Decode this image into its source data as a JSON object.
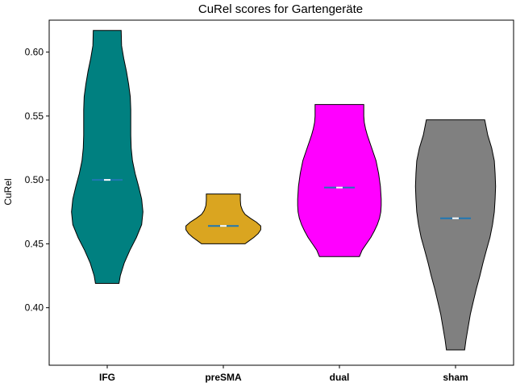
{
  "chart_data": {
    "type": "violin",
    "title": "CuRel scores for Gartengeräte",
    "xlabel": "",
    "ylabel": "CuRel",
    "ylim": [
      0.355,
      0.625
    ],
    "yticks": [
      0.4,
      0.45,
      0.5,
      0.55,
      0.6
    ],
    "ytick_labels": [
      "0.40",
      "0.45",
      "0.50",
      "0.55",
      "0.60"
    ],
    "categories": [
      "IFG",
      "preSMA",
      "dual",
      "sham"
    ],
    "grid": false,
    "violins": [
      {
        "category": "IFG",
        "color": "#008080",
        "min": 0.419,
        "max": 0.617,
        "mean": 0.5,
        "median": 0.5,
        "profile": [
          [
            0.419,
            0.27
          ],
          [
            0.425,
            0.3
          ],
          [
            0.435,
            0.39
          ],
          [
            0.445,
            0.52
          ],
          [
            0.455,
            0.67
          ],
          [
            0.465,
            0.79
          ],
          [
            0.475,
            0.82
          ],
          [
            0.485,
            0.79
          ],
          [
            0.495,
            0.72
          ],
          [
            0.505,
            0.64
          ],
          [
            0.515,
            0.58
          ],
          [
            0.525,
            0.55
          ],
          [
            0.535,
            0.54
          ],
          [
            0.545,
            0.54
          ],
          [
            0.555,
            0.54
          ],
          [
            0.565,
            0.53
          ],
          [
            0.575,
            0.49
          ],
          [
            0.585,
            0.44
          ],
          [
            0.595,
            0.38
          ],
          [
            0.605,
            0.33
          ],
          [
            0.617,
            0.32
          ]
        ]
      },
      {
        "category": "preSMA",
        "color": "#DAA520",
        "min": 0.45,
        "max": 0.489,
        "mean": 0.464,
        "median": 0.464,
        "profile": [
          [
            0.45,
            0.5
          ],
          [
            0.452,
            0.58
          ],
          [
            0.455,
            0.7
          ],
          [
            0.458,
            0.8
          ],
          [
            0.461,
            0.86
          ],
          [
            0.464,
            0.86
          ],
          [
            0.467,
            0.76
          ],
          [
            0.47,
            0.62
          ],
          [
            0.473,
            0.5
          ],
          [
            0.476,
            0.44
          ],
          [
            0.48,
            0.4
          ],
          [
            0.484,
            0.39
          ],
          [
            0.489,
            0.39
          ]
        ]
      },
      {
        "category": "dual",
        "color": "#FF00FF",
        "min": 0.44,
        "max": 0.559,
        "mean": 0.494,
        "median": 0.494,
        "profile": [
          [
            0.44,
            0.46
          ],
          [
            0.445,
            0.52
          ],
          [
            0.45,
            0.62
          ],
          [
            0.455,
            0.72
          ],
          [
            0.46,
            0.8
          ],
          [
            0.465,
            0.87
          ],
          [
            0.47,
            0.92
          ],
          [
            0.475,
            0.95
          ],
          [
            0.48,
            0.96
          ],
          [
            0.485,
            0.96
          ],
          [
            0.49,
            0.95
          ],
          [
            0.495,
            0.94
          ],
          [
            0.5,
            0.92
          ],
          [
            0.505,
            0.9
          ],
          [
            0.51,
            0.87
          ],
          [
            0.515,
            0.84
          ],
          [
            0.52,
            0.79
          ],
          [
            0.525,
            0.74
          ],
          [
            0.53,
            0.69
          ],
          [
            0.535,
            0.64
          ],
          [
            0.54,
            0.6
          ],
          [
            0.545,
            0.57
          ],
          [
            0.55,
            0.56
          ],
          [
            0.555,
            0.56
          ],
          [
            0.559,
            0.56
          ]
        ]
      },
      {
        "category": "sham",
        "color": "#808080",
        "min": 0.367,
        "max": 0.547,
        "mean": 0.47,
        "median": 0.47,
        "profile": [
          [
            0.367,
            0.21
          ],
          [
            0.375,
            0.24
          ],
          [
            0.385,
            0.29
          ],
          [
            0.395,
            0.34
          ],
          [
            0.405,
            0.41
          ],
          [
            0.415,
            0.48
          ],
          [
            0.425,
            0.56
          ],
          [
            0.435,
            0.63
          ],
          [
            0.445,
            0.71
          ],
          [
            0.455,
            0.79
          ],
          [
            0.465,
            0.85
          ],
          [
            0.475,
            0.89
          ],
          [
            0.485,
            0.91
          ],
          [
            0.495,
            0.92
          ],
          [
            0.505,
            0.91
          ],
          [
            0.515,
            0.89
          ],
          [
            0.525,
            0.83
          ],
          [
            0.535,
            0.74
          ],
          [
            0.547,
            0.67
          ]
        ]
      }
    ]
  }
}
